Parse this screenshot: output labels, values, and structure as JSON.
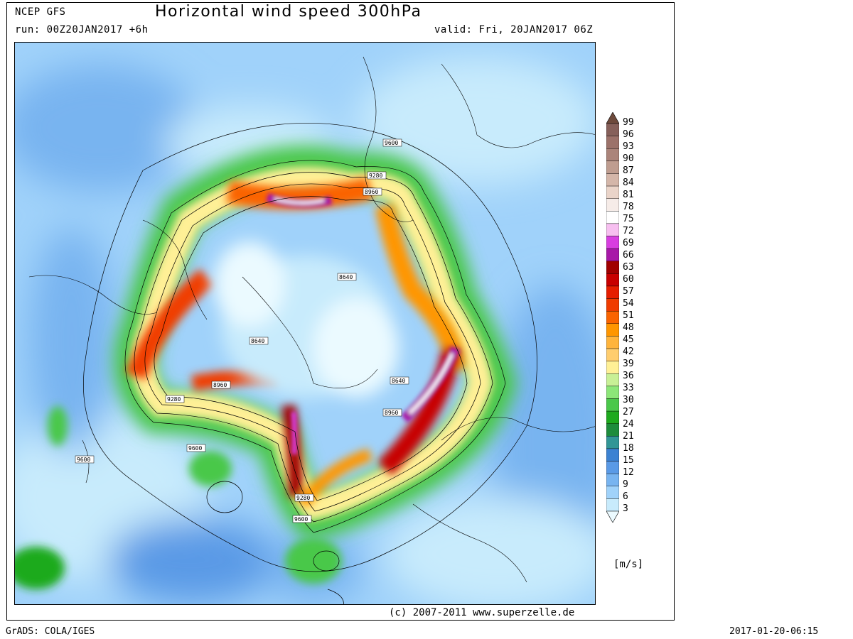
{
  "header": {
    "model": "NCEP GFS",
    "title": "Horizontal wind speed 300hPa",
    "run": "run: 00Z20JAN2017 +6h",
    "valid": "valid: Fri, 20JAN2017 06Z"
  },
  "footer": {
    "copyright": "(c) 2007-2011 www.superzelle.de",
    "grads": "GrADS: COLA/IGES",
    "timestamp": "2017-01-20-06:15"
  },
  "units": "[m/s]",
  "colorbar": {
    "levels": [
      "99",
      "96",
      "93",
      "90",
      "87",
      "84",
      "81",
      "78",
      "75",
      "72",
      "69",
      "66",
      "63",
      "60",
      "57",
      "54",
      "51",
      "48",
      "45",
      "42",
      "39",
      "36",
      "33",
      "30",
      "27",
      "24",
      "21",
      "18",
      "15",
      "12",
      "9",
      "6",
      "3"
    ],
    "colors": [
      "#6e4a3c",
      "#86605a",
      "#9c726a",
      "#ab847a",
      "#bf9d90",
      "#d4b6a9",
      "#ead4c9",
      "#f6ece8",
      "#ffffff",
      "#f7bff0",
      "#d83ee0",
      "#a818a8",
      "#a00000",
      "#c80000",
      "#e61e00",
      "#f03c00",
      "#fa6400",
      "#ff9600",
      "#ffb43c",
      "#ffcd6e",
      "#fff096",
      "#c8f096",
      "#8ce678",
      "#4ac84a",
      "#1eaa1e",
      "#1e8c3c",
      "#329696",
      "#3c82d2",
      "#5a9ae6",
      "#78b4f0",
      "#a0d2fa",
      "#c8ebfc",
      "#ebfaff"
    ]
  },
  "isohypses": [
    {
      "label": "9600",
      "at": "north"
    },
    {
      "label": "9280",
      "at": "north"
    },
    {
      "label": "8960",
      "at": "north"
    },
    {
      "label": "8640",
      "at": "center"
    },
    {
      "label": "8640",
      "at": "west-center"
    },
    {
      "label": "8640",
      "at": "east"
    },
    {
      "label": "8960",
      "at": "east"
    },
    {
      "label": "8960",
      "at": "southwest"
    },
    {
      "label": "9280",
      "at": "west"
    },
    {
      "label": "9600",
      "at": "southwest"
    },
    {
      "label": "9600",
      "at": "far-west"
    },
    {
      "label": "9280",
      "at": "south"
    },
    {
      "label": "9600",
      "at": "south"
    }
  ]
}
